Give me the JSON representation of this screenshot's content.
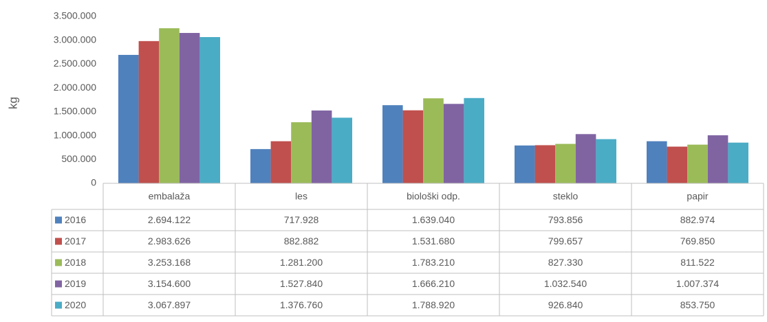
{
  "chart_data": {
    "type": "bar",
    "y_label": "kg",
    "categories": [
      "embalaža",
      "les",
      "biološki odp.",
      "steklo",
      "papir"
    ],
    "series": [
      {
        "name": "2016",
        "color": "#4f81bd",
        "values": [
          2694122,
          717928,
          1639040,
          793856,
          882974
        ],
        "value_labels": [
          "2.694.122",
          "717.928",
          "1.639.040",
          "793.856",
          "882.974"
        ]
      },
      {
        "name": "2017",
        "color": "#c0504d",
        "values": [
          2983626,
          882882,
          1531680,
          799657,
          769850
        ],
        "value_labels": [
          "2.983.626",
          "882.882",
          "1.531.680",
          "799.657",
          "769.850"
        ]
      },
      {
        "name": "2018",
        "color": "#9bbb59",
        "values": [
          3253168,
          1281200,
          1783210,
          827330,
          811522
        ],
        "value_labels": [
          "3.253.168",
          "1.281.200",
          "1.783.210",
          "827.330",
          "811.522"
        ]
      },
      {
        "name": "2019",
        "color": "#8064a2",
        "values": [
          3154600,
          1527840,
          1666210,
          1032540,
          1007374
        ],
        "value_labels": [
          "3.154.600",
          "1.527.840",
          "1.666.210",
          "1.032.540",
          "1.007.374"
        ]
      },
      {
        "name": "2020",
        "color": "#4bacc6",
        "values": [
          3067897,
          1376760,
          1788920,
          926840,
          853750
        ],
        "value_labels": [
          "3.067.897",
          "1.376.760",
          "1.788.920",
          "926.840",
          "853.750"
        ]
      }
    ],
    "ylim": [
      0,
      3500000
    ],
    "yticks": [
      0,
      {
        "value": 500000,
        "label": "500.000"
      },
      {
        "value": 1000000,
        "label": "1.000.000"
      },
      {
        "value": 1500000,
        "label": "1.500.000"
      },
      {
        "value": 2000000,
        "label": "2.000.000"
      },
      {
        "value": 2500000,
        "label": "2.500.000"
      },
      {
        "value": 3000000,
        "label": "3.000.000"
      },
      {
        "value": 3500000,
        "label": "3.500.000"
      }
    ],
    "grid": false
  }
}
